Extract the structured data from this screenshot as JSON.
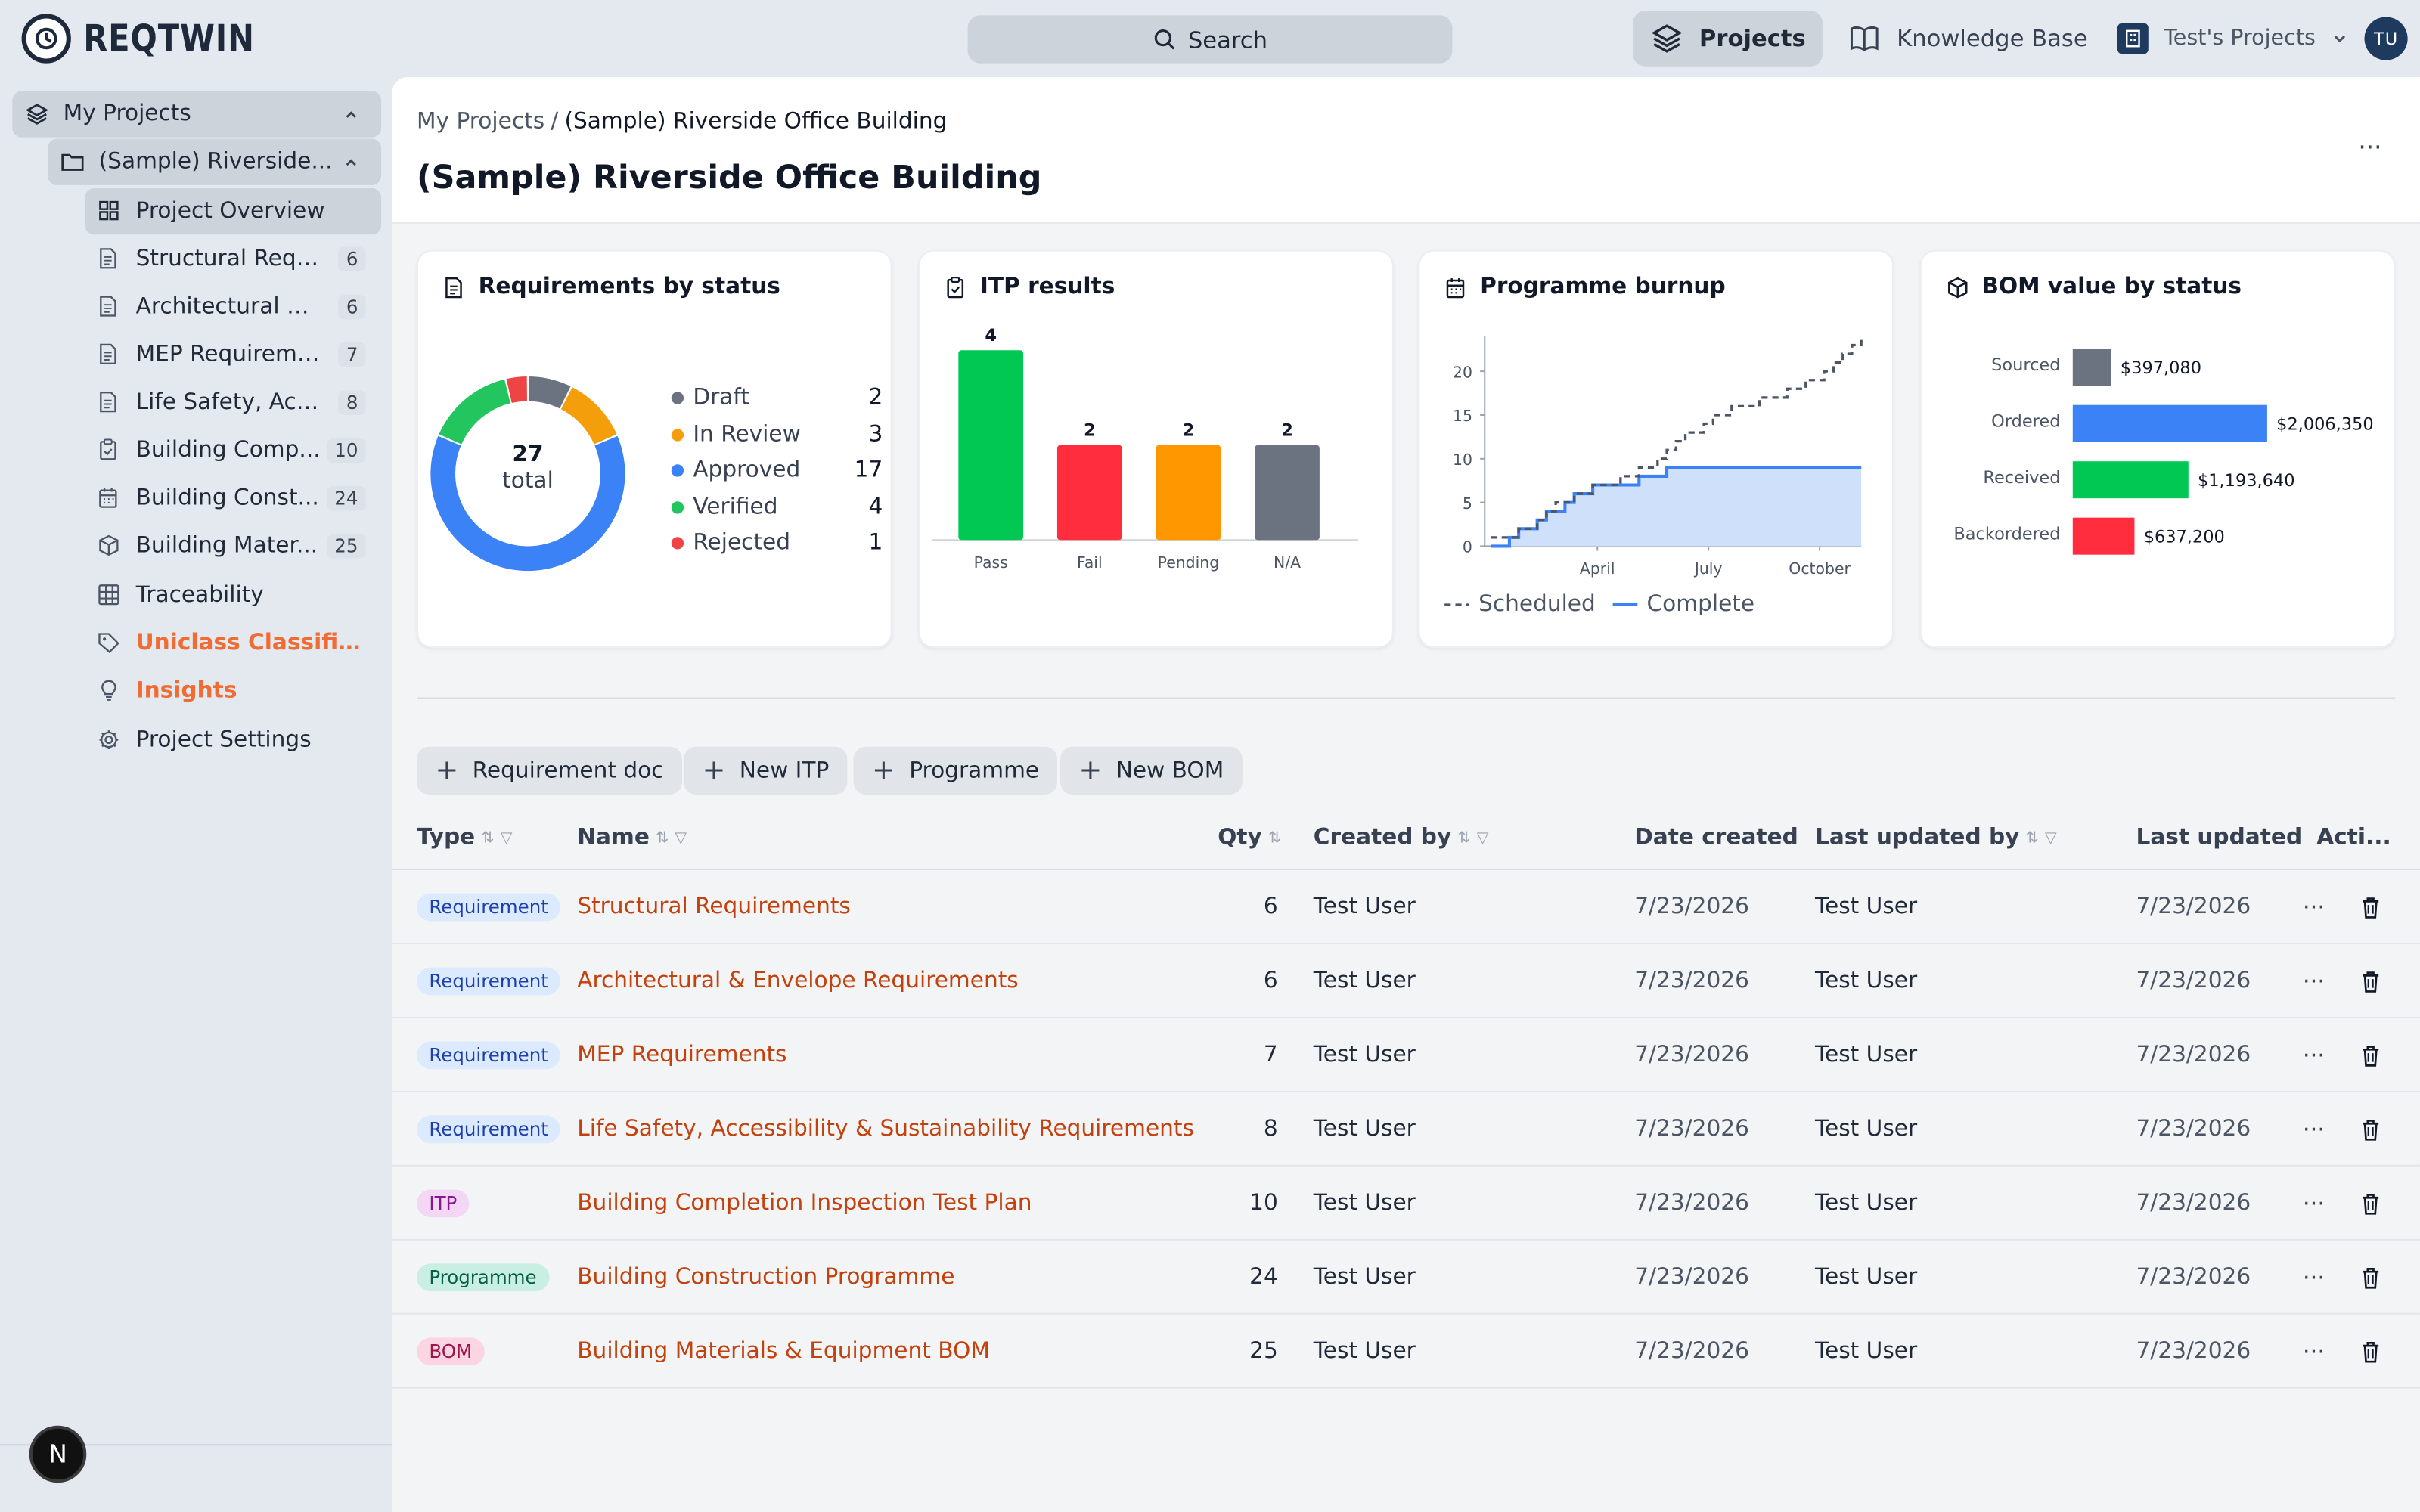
{
  "app": {
    "name": "REQTWIN"
  },
  "header": {
    "search_label": "Search",
    "nav_projects": "Projects",
    "nav_knowledge": "Knowledge Base",
    "workspace": "Test's Projects",
    "avatar_initials": "TU"
  },
  "sidebar": {
    "root": "My Projects",
    "project": "(Sample) Riverside...",
    "items": [
      {
        "label": "Project Overview",
        "count": null
      },
      {
        "label": "Structural Requ...",
        "count": "6"
      },
      {
        "label": "Architectural & ...",
        "count": "6"
      },
      {
        "label": "MEP Requireme...",
        "count": "7"
      },
      {
        "label": "Life Safety, Acc...",
        "count": "8"
      },
      {
        "label": "Building Comp...",
        "count": "10"
      },
      {
        "label": "Building Const...",
        "count": "24"
      },
      {
        "label": "Building Mater...",
        "count": "25"
      },
      {
        "label": "Traceability",
        "count": null
      },
      {
        "label": "Uniclass Classific...",
        "count": null
      },
      {
        "label": "Insights",
        "count": null
      },
      {
        "label": "Project Settings",
        "count": null
      }
    ],
    "badge": "N"
  },
  "page": {
    "breadcrumb_root": "My Projects",
    "breadcrumb_sep": "/",
    "breadcrumb_current": "(Sample) Riverside Office Building",
    "title": "(Sample) Riverside Office Building",
    "more": "···"
  },
  "cards": {
    "req_status_title": "Requirements by status",
    "itp_title": "ITP results",
    "burnup_title": "Programme burnup",
    "bom_title": "BOM value by status"
  },
  "chart_data": [
    {
      "type": "pie",
      "title": "Requirements by status",
      "center_value": "27",
      "center_label": "total",
      "categories": [
        "Draft",
        "In Review",
        "Approved",
        "Verified",
        "Rejected"
      ],
      "values": [
        2,
        3,
        17,
        4,
        1
      ],
      "colors": [
        "#6b7280",
        "#f59e0b",
        "#3b82f6",
        "#22c55e",
        "#ef4444"
      ]
    },
    {
      "type": "bar",
      "title": "ITP results",
      "categories": [
        "Pass",
        "Fail",
        "Pending",
        "N/A"
      ],
      "values": [
        4,
        2,
        2,
        2
      ],
      "colors": [
        "#00c853",
        "#ff2d3d",
        "#ff9800",
        "#6b7280"
      ]
    },
    {
      "type": "line",
      "title": "Programme burnup",
      "x_ticks": [
        "April",
        "July",
        "October"
      ],
      "y_ticks": [
        0,
        5,
        10,
        15,
        20
      ],
      "ylim": [
        0,
        24
      ],
      "series": [
        {
          "name": "Scheduled",
          "style": "dashed",
          "color": "#4b5563",
          "x": [
            0,
            1,
            2,
            3,
            4,
            5,
            6,
            7,
            8,
            9,
            10,
            11,
            12,
            13,
            14,
            15,
            16,
            17,
            18,
            19,
            20,
            21,
            22,
            23,
            24,
            25,
            26,
            27,
            28,
            29,
            30,
            31,
            32,
            33,
            34,
            35,
            36,
            37,
            38,
            39,
            40
          ],
          "y": [
            1,
            1,
            1,
            2,
            2,
            3,
            4,
            5,
            5,
            6,
            6,
            7,
            7,
            7,
            8,
            8,
            9,
            9,
            10,
            11,
            12,
            13,
            13,
            14,
            15,
            15,
            16,
            16,
            16,
            17,
            17,
            17,
            18,
            18,
            19,
            19,
            20,
            21,
            22,
            23,
            24
          ]
        },
        {
          "name": "Complete",
          "style": "solid",
          "color": "#3b82f6",
          "x": [
            0,
            1,
            2,
            3,
            4,
            5,
            6,
            7,
            8,
            9,
            10,
            11,
            12,
            13,
            14,
            15,
            16,
            17,
            18,
            19,
            20,
            21,
            22,
            23,
            24,
            25,
            26,
            27,
            28,
            29,
            30,
            31,
            32,
            33,
            34,
            35,
            36,
            37,
            38,
            39,
            40
          ],
          "y": [
            0,
            0,
            1,
            2,
            2,
            3,
            4,
            4,
            5,
            6,
            6,
            7,
            7,
            7,
            7,
            7,
            8,
            8,
            8,
            9,
            9,
            9,
            9,
            9,
            9,
            9,
            9,
            9,
            9,
            9,
            9,
            9,
            9,
            9,
            9,
            9,
            9,
            9,
            9,
            9,
            9
          ]
        }
      ],
      "legend": [
        "Scheduled",
        "Complete"
      ]
    },
    {
      "type": "bar",
      "orientation": "horizontal",
      "title": "BOM value by status",
      "categories": [
        "Sourced",
        "Ordered",
        "Received",
        "Backordered"
      ],
      "values": [
        397080,
        2006350,
        1193640,
        637200
      ],
      "labels": [
        "$397,080",
        "$2,006,350",
        "$1,193,640",
        "$637,200"
      ],
      "colors": [
        "#6b7280",
        "#3b82f6",
        "#00c853",
        "#ff2d3d"
      ]
    }
  ],
  "actions": {
    "req_doc": "Requirement doc",
    "new_itp": "New ITP",
    "programme": "Programme",
    "new_bom": "New BOM"
  },
  "table": {
    "headers": {
      "type": "Type",
      "name": "Name",
      "qty": "Qty",
      "created_by": "Created by",
      "date_created": "Date created",
      "last_updated_by": "Last updated by",
      "last_updated": "Last updated",
      "actions": "Acti..."
    },
    "rows": [
      {
        "type": "Requirement",
        "name": "Structural Requirements",
        "qty": "6",
        "created_by": "Test User",
        "date_created": "7/23/2026",
        "updated_by": "Test User",
        "updated": "7/23/2026"
      },
      {
        "type": "Requirement",
        "name": "Architectural & Envelope Requirements",
        "qty": "6",
        "created_by": "Test User",
        "date_created": "7/23/2026",
        "updated_by": "Test User",
        "updated": "7/23/2026"
      },
      {
        "type": "Requirement",
        "name": "MEP Requirements",
        "qty": "7",
        "created_by": "Test User",
        "date_created": "7/23/2026",
        "updated_by": "Test User",
        "updated": "7/23/2026"
      },
      {
        "type": "Requirement",
        "name": "Life Safety, Accessibility & Sustainability Requirements",
        "qty": "8",
        "created_by": "Test User",
        "date_created": "7/23/2026",
        "updated_by": "Test User",
        "updated": "7/23/2026"
      },
      {
        "type": "ITP",
        "name": "Building Completion Inspection Test Plan",
        "qty": "10",
        "created_by": "Test User",
        "date_created": "7/23/2026",
        "updated_by": "Test User",
        "updated": "7/23/2026"
      },
      {
        "type": "Programme",
        "name": "Building Construction Programme",
        "qty": "24",
        "created_by": "Test User",
        "date_created": "7/23/2026",
        "updated_by": "Test User",
        "updated": "7/23/2026"
      },
      {
        "type": "BOM",
        "name": "Building Materials & Equipment BOM",
        "qty": "25",
        "created_by": "Test User",
        "date_created": "7/23/2026",
        "updated_by": "Test User",
        "updated": "7/23/2026"
      }
    ],
    "pill_colors": {
      "Requirement": {
        "bg": "#dbeafe",
        "fg": "#1e40af"
      },
      "ITP": {
        "bg": "#f3d7f5",
        "fg": "#86198f"
      },
      "Programme": {
        "bg": "#c9efe3",
        "fg": "#065f46"
      },
      "BOM": {
        "bg": "#fbd5e2",
        "fg": "#9d174d"
      }
    },
    "row_more": "···"
  },
  "colors": {
    "accent": "#ef6c35",
    "link": "#c2410c"
  }
}
